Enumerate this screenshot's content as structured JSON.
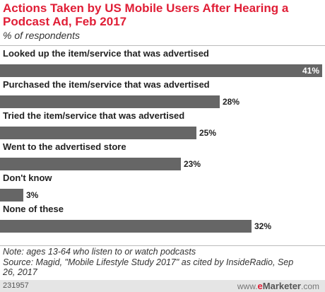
{
  "title": "Actions Taken by US Mobile Users After Hearing a Podcast Ad, Feb 2017",
  "subtitle": "% of respondents",
  "chart_data": {
    "type": "bar",
    "orientation": "horizontal",
    "categories": [
      "Looked up the item/service that was advertised",
      "Purchased the item/service that was advertised",
      "Tried the item/service that was advertised",
      "Went to the advertised store",
      "Don't know",
      "None of these"
    ],
    "values": [
      41,
      28,
      25,
      23,
      3,
      32
    ],
    "value_labels": [
      "41%",
      "28%",
      "25%",
      "23%",
      "3%",
      "32%"
    ],
    "xlim": [
      0,
      41
    ],
    "grid": false,
    "bar_color": "#666666"
  },
  "note_lines": [
    "Note: ages 13-64 who listen to or watch podcasts",
    "Source: Magid, \"Mobile Lifestyle Study 2017\" as cited by InsideRadio, Sep",
    "26, 2017"
  ],
  "footer": {
    "chart_id": "231957",
    "logo_e": "e",
    "logo_rest": "Marketer",
    "logo_dot": ".com"
  }
}
